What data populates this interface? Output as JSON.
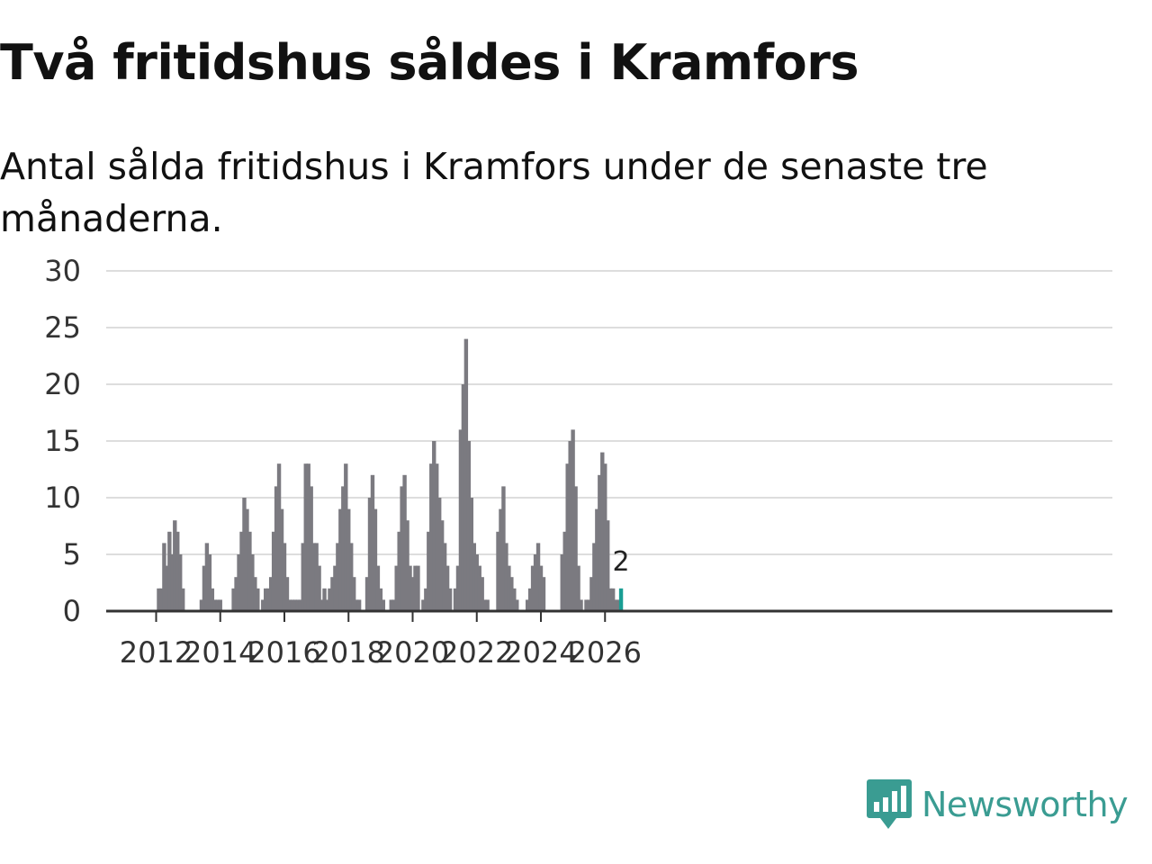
{
  "header": {
    "title": "Två fritidshus såldes i Kramfors",
    "subtitle": "Antal sålda fritidshus i Kramfors under de senaste tre månaderna."
  },
  "brand": {
    "name": "Newsworthy"
  },
  "colors": {
    "bar": "#7b7a80",
    "highlight": "#1a9e94",
    "grid": "#dddddd",
    "axis": "#333333"
  },
  "chart_data": {
    "type": "bar",
    "title": "Två fritidshus såldes i Kramfors",
    "subtitle": "Antal sålda fritidshus i Kramfors under de senaste tre månaderna.",
    "xlabel": "",
    "ylabel": "",
    "ylim": [
      0,
      30
    ],
    "yticks": [
      0,
      5,
      10,
      15,
      20,
      25,
      30
    ],
    "xticks": [
      "2012",
      "2014",
      "2016",
      "2018",
      "2020",
      "2022",
      "2024",
      "2026"
    ],
    "start": "2011-03",
    "frequency": "monthly",
    "highlight_label": "2",
    "values": [
      0,
      0,
      0,
      0,
      0,
      0,
      0,
      0,
      0,
      0,
      0,
      2,
      2,
      6,
      4,
      7,
      5,
      8,
      7,
      5,
      2,
      0,
      0,
      0,
      0,
      0,
      0,
      1,
      4,
      6,
      5,
      2,
      1,
      1,
      1,
      0,
      0,
      0,
      0,
      2,
      3,
      5,
      7,
      10,
      9,
      7,
      5,
      3,
      2,
      0,
      1,
      2,
      2,
      3,
      7,
      11,
      13,
      9,
      6,
      3,
      1,
      1,
      1,
      1,
      1,
      6,
      13,
      13,
      11,
      6,
      6,
      4,
      1,
      2,
      1,
      2,
      3,
      4,
      6,
      9,
      11,
      13,
      9,
      6,
      3,
      1,
      1,
      0,
      0,
      3,
      10,
      12,
      9,
      4,
      2,
      1,
      0,
      0,
      1,
      1,
      4,
      7,
      11,
      12,
      8,
      4,
      3,
      4,
      4,
      0,
      1,
      2,
      7,
      13,
      15,
      13,
      10,
      8,
      6,
      4,
      2,
      0,
      2,
      4,
      16,
      20,
      24,
      15,
      10,
      6,
      5,
      4,
      3,
      1,
      1,
      0,
      0,
      0,
      7,
      9,
      11,
      6,
      4,
      3,
      2,
      1,
      0,
      0,
      0,
      1,
      2,
      4,
      5,
      6,
      4,
      3,
      0,
      0,
      0,
      0,
      0,
      0,
      5,
      7,
      13,
      15,
      16,
      11,
      4,
      1,
      0,
      1,
      1,
      3,
      6,
      9,
      12,
      14,
      13,
      8,
      2,
      2,
      1,
      1,
      2
    ]
  }
}
